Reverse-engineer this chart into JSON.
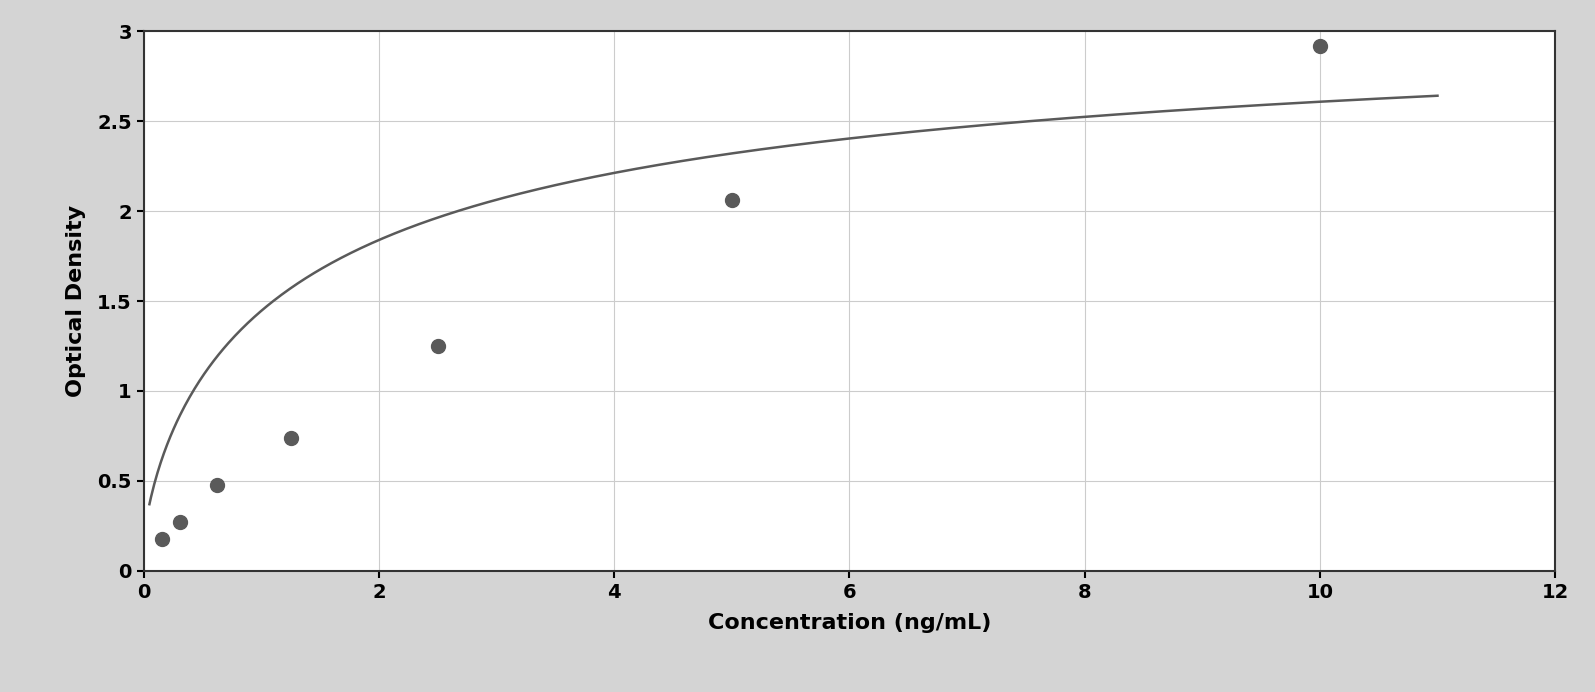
{
  "x_data": [
    0.156,
    0.313,
    0.625,
    1.25,
    2.5,
    5.0,
    10.0
  ],
  "y_data": [
    0.175,
    0.27,
    0.48,
    0.74,
    1.25,
    2.06,
    2.92
  ],
  "xlabel": "Concentration (ng/mL)",
  "ylabel": "Optical Density",
  "xlim": [
    0,
    12
  ],
  "ylim": [
    0,
    3.0
  ],
  "xticks": [
    0,
    2,
    4,
    6,
    8,
    10,
    12
  ],
  "yticks": [
    0,
    0.5,
    1.0,
    1.5,
    2.0,
    2.5,
    3.0
  ],
  "data_color": "#5a5a5a",
  "line_color": "#5a5a5a",
  "background_color": "#ffffff",
  "plot_bg_color": "#ffffff",
  "grid_color": "#cccccc",
  "outer_border_color": "#aaaaaa",
  "spine_color": "#333333",
  "marker_size": 10,
  "line_width": 1.8,
  "xlabel_fontsize": 16,
  "ylabel_fontsize": 16,
  "tick_fontsize": 14,
  "xlabel_fontweight": "bold",
  "ylabel_fontweight": "bold",
  "tick_fontweight": "bold"
}
